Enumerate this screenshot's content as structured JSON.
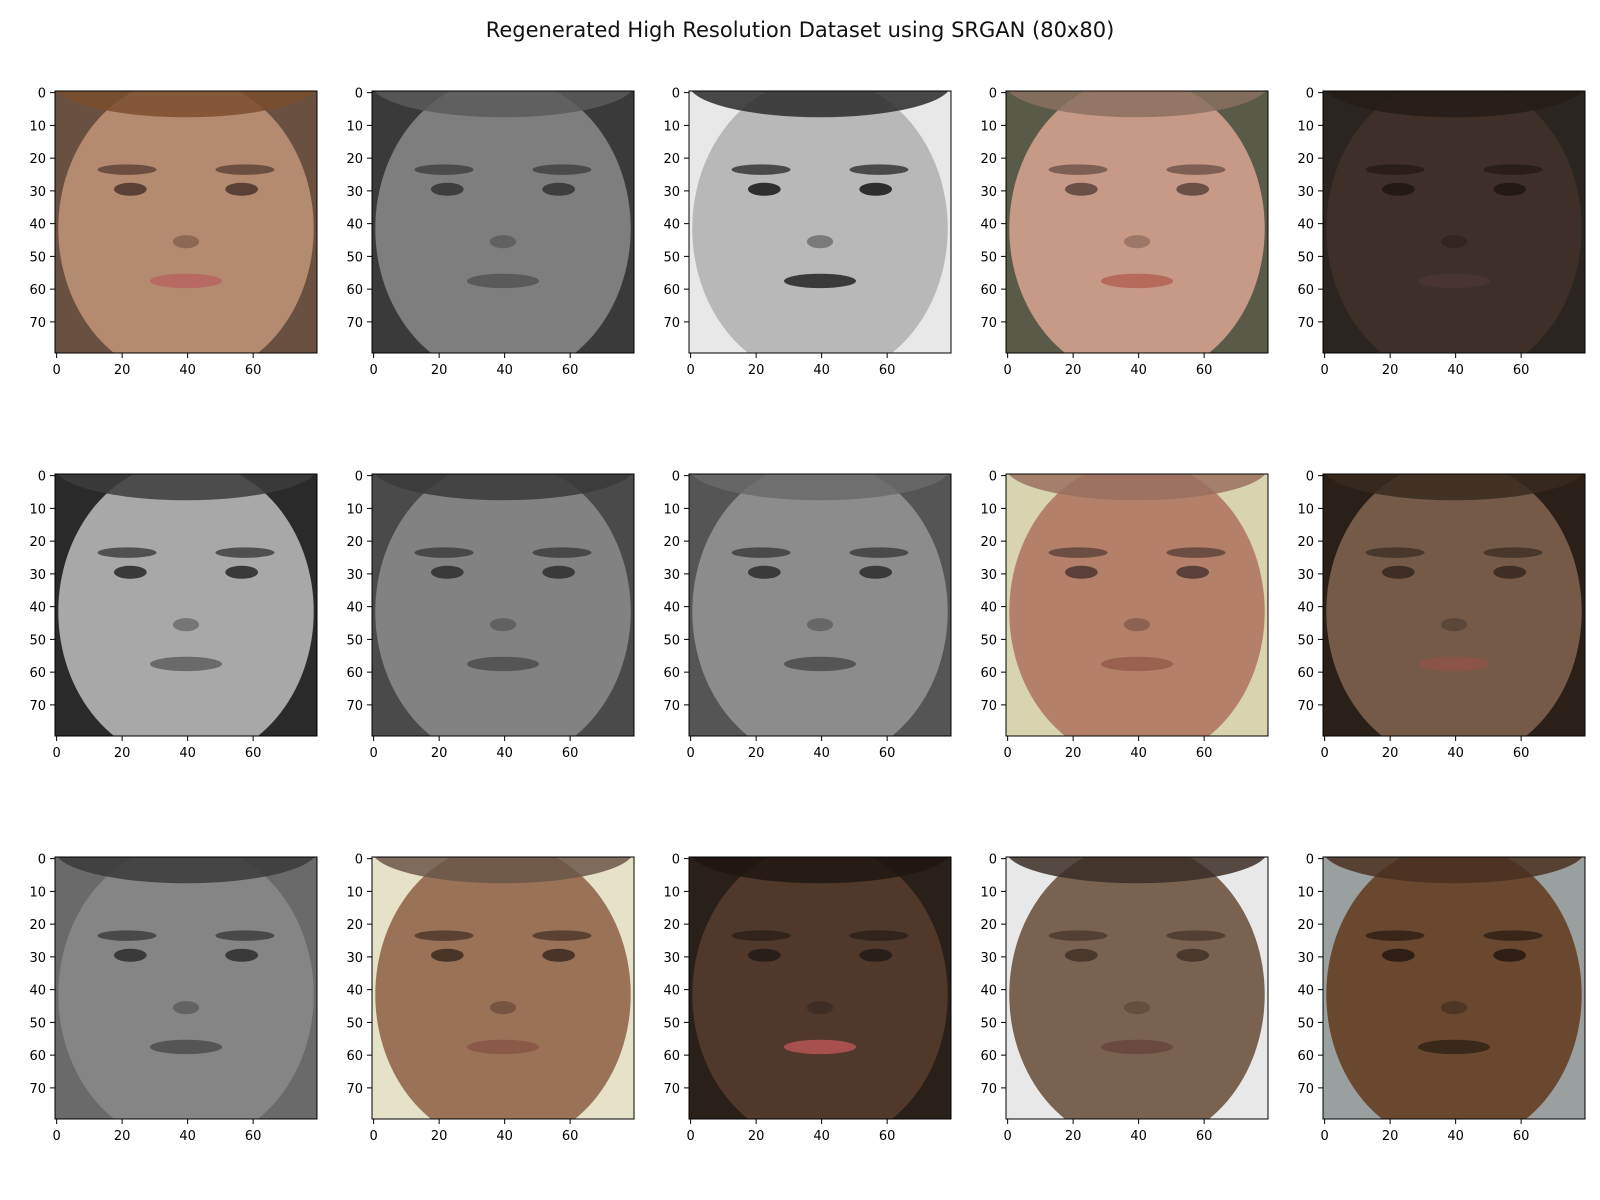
{
  "title": "Regenerated High Resolution Dataset using SRGAN (80x80)",
  "chart_data": {
    "type": "image_grid",
    "rows": 3,
    "cols": 5,
    "image_size": [
      80,
      80
    ],
    "x_ticks": [
      0,
      20,
      40,
      60
    ],
    "y_ticks": [
      0,
      10,
      20,
      30,
      40,
      50,
      60,
      70
    ],
    "xlim": [
      0,
      80
    ],
    "ylim": [
      80,
      0
    ],
    "images": [
      {
        "tone": "#b48a70",
        "bg": "#6a5040",
        "hair": "#7a4e2e",
        "feature": "#5a4036",
        "mouth": "#b66a62"
      },
      {
        "tone": "#7e7e7e",
        "bg": "#3a3a3a",
        "hair": "#5a5a5a",
        "feature": "#3e3e3e",
        "mouth": "#5a5a5a"
      },
      {
        "tone": "#b8b8b8",
        "bg": "#e8e8e8",
        "hair": "#2a2a2a",
        "feature": "#2e2e2e",
        "mouth": "#3a3a3a"
      },
      {
        "tone": "#c69a86",
        "bg": "#5a5a48",
        "hair": "#8a7060",
        "feature": "#6a5046",
        "mouth": "#b56a5c"
      },
      {
        "tone": "#3e3028",
        "bg": "#2a2520",
        "hair": "#241c18",
        "feature": "#241a14",
        "mouth": "#4a3430"
      },
      {
        "tone": "#a8a8a8",
        "bg": "#2a2a2a",
        "hair": "#3c3c3c",
        "feature": "#3a3a3a",
        "mouth": "#6a6a6a"
      },
      {
        "tone": "#828282",
        "bg": "#4a4a4a",
        "hair": "#3a3a3a",
        "feature": "#3a3a3a",
        "mouth": "#555555"
      },
      {
        "tone": "#8c8c8c",
        "bg": "#555555",
        "hair": "#6a6a6a",
        "feature": "#3a3a3a",
        "mouth": "#555555"
      },
      {
        "tone": "#b4806a",
        "bg": "#d8d4b0",
        "hair": "#9a7060",
        "feature": "#5a4038",
        "mouth": "#9a6050"
      },
      {
        "tone": "#755a48",
        "bg": "#2a2018",
        "hair": "#3a2a20",
        "feature": "#3e2e24",
        "mouth": "#8a5448"
      },
      {
        "tone": "#858585",
        "bg": "#6a6a6a",
        "hair": "#3a3a3a",
        "feature": "#3a3a3a",
        "mouth": "#555555"
      },
      {
        "tone": "#9a7258",
        "bg": "#e6e2c8",
        "hair": "#6a5648",
        "feature": "#4a3428",
        "mouth": "#8a5a48"
      },
      {
        "tone": "#50382a",
        "bg": "#2a201a",
        "hair": "#1e1612",
        "feature": "#2a1e18",
        "mouth": "#a8504e"
      },
      {
        "tone": "#7a6250",
        "bg": "#e8e8e8",
        "hair": "#3a2e26",
        "feature": "#4a382c",
        "mouth": "#6a4a3e"
      },
      {
        "tone": "#6a4830",
        "bg": "#9aa0a0",
        "hair": "#4a3020",
        "feature": "#2e1e14",
        "mouth": "#3a2818"
      }
    ]
  }
}
